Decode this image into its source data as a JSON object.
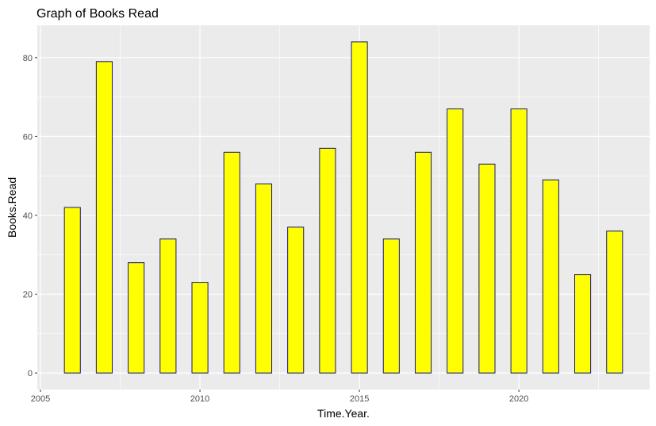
{
  "chart_data": {
    "type": "bar",
    "title": "Graph of Books Read",
    "xlabel": "Time.Year.",
    "ylabel": "Books.Read",
    "x": [
      2006,
      2007,
      2008,
      2009,
      2010,
      2011,
      2012,
      2013,
      2014,
      2015,
      2016,
      2017,
      2018,
      2019,
      2020,
      2021,
      2022,
      2023
    ],
    "values": [
      42,
      79,
      28,
      34,
      23,
      56,
      48,
      37,
      57,
      84,
      34,
      56,
      67,
      53,
      67,
      49,
      25,
      36
    ],
    "xlim": [
      2004.9,
      2024.1
    ],
    "ylim": [
      -4.2,
      88.2
    ],
    "xticks": [
      2005,
      2010,
      2015,
      2020
    ],
    "xtick_labels": [
      "2005",
      "2010",
      "2015",
      "2020"
    ],
    "yticks": [
      0,
      20,
      40,
      60,
      80
    ],
    "ytick_labels": [
      "0",
      "20",
      "40",
      "60",
      "80"
    ],
    "grid": true,
    "bar_fill": "#ffff00",
    "bar_outline": "#191970",
    "panel_background": "#ebebeb",
    "grid_color": "#ffffff"
  }
}
